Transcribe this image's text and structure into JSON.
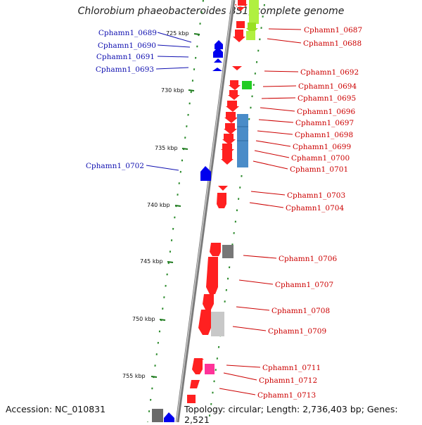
{
  "title": "Chlorobium phaeobacteroides BS1, complete genome",
  "accession": "Accession: NC_010831",
  "topology": "Topology: circular; Length: 2,736,403 bp; Genes: 2,521",
  "colors": {
    "right_label": "#cc0000",
    "left_label": "#1010b0",
    "tick": "#2a8a2a",
    "backbone": "#8c8c8c"
  },
  "scale_labels": [
    "725 kbp",
    "730 kbp",
    "735 kbp",
    "740 kbp",
    "745 kbp",
    "750 kbp",
    "755 kbp"
  ],
  "right_genes": [
    "Cphamn1_0687",
    "Cphamn1_0688",
    "Cphamn1_0692",
    "Cphamn1_0694",
    "Cphamn1_0695",
    "Cphamn1_0696",
    "Cphamn1_0697",
    "Cphamn1_0698",
    "Cphamn1_0699",
    "Cphamn1_0700",
    "Cphamn1_0701",
    "Cphamn1_0703",
    "Cphamn1_0704",
    "Cphamn1_0706",
    "Cphamn1_0707",
    "Cphamn1_0708",
    "Cphamn1_0709",
    "Cphamn1_0711",
    "Cphamn1_0712",
    "Cphamn1_0713"
  ],
  "left_genes": [
    "Cphamn1_0689",
    "Cphamn1_0690",
    "Cphamn1_0691",
    "Cphamn1_0693",
    "Cphamn1_0702"
  ]
}
